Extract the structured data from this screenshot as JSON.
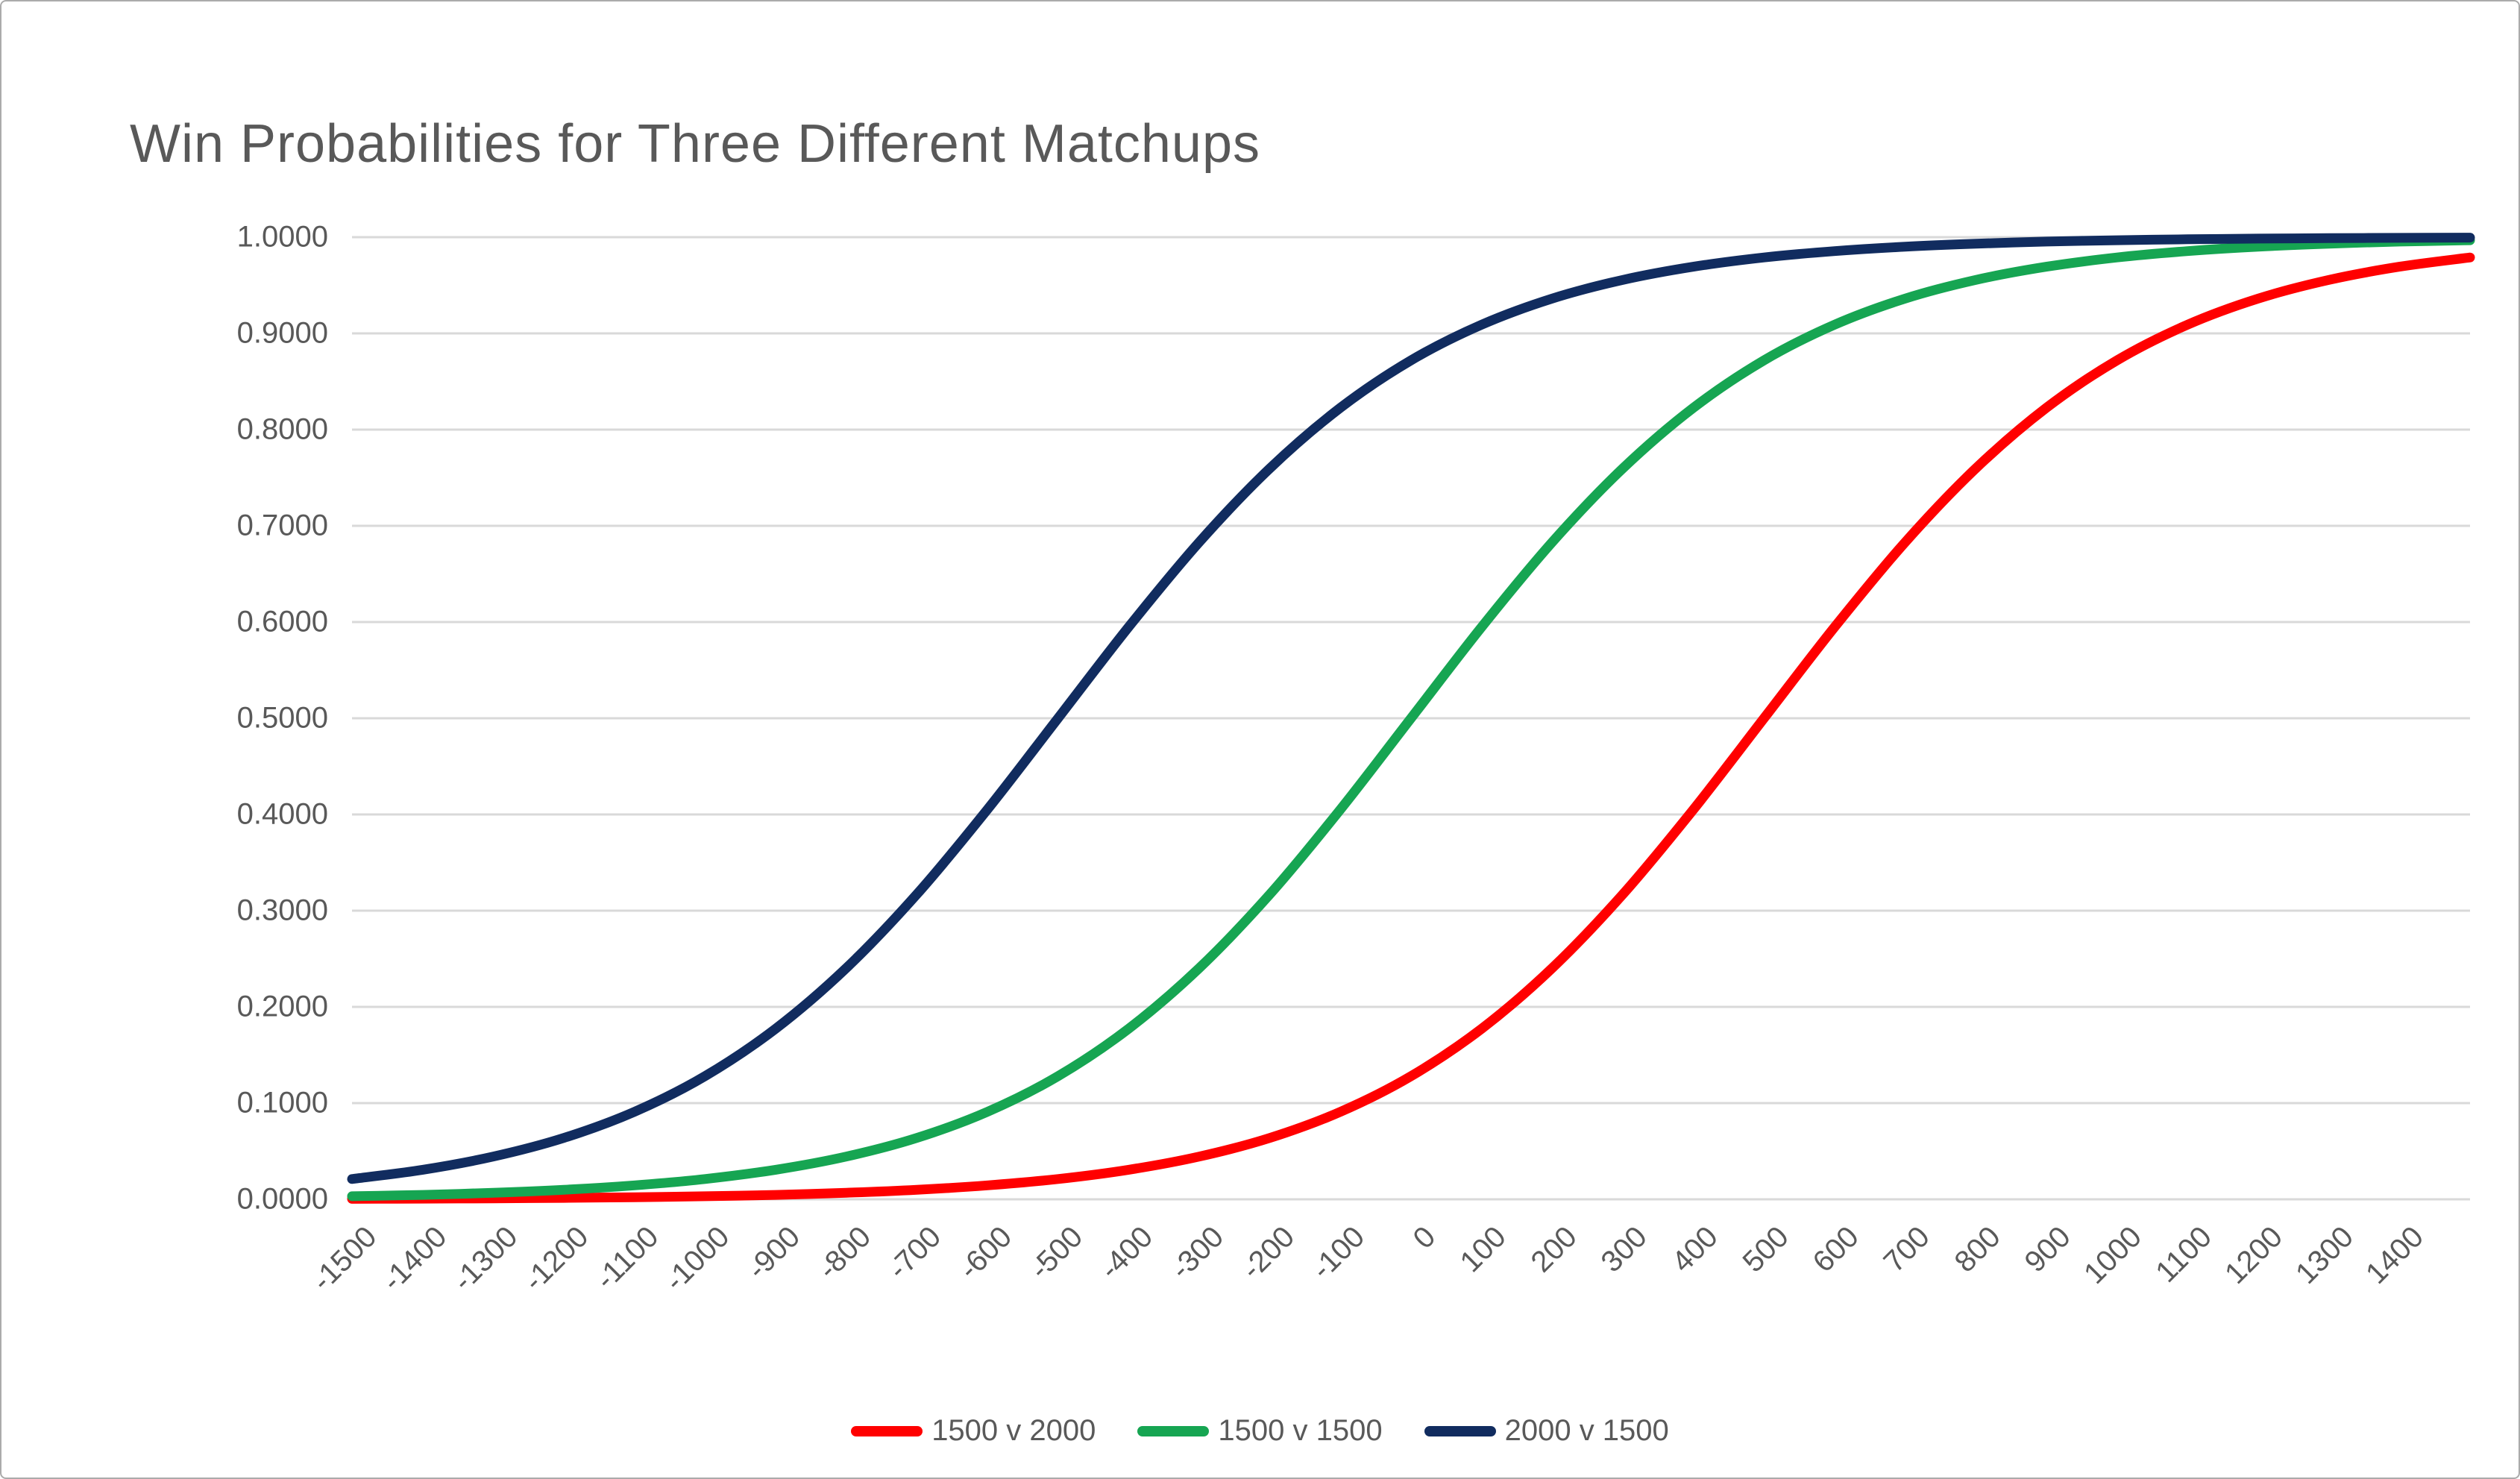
{
  "window": {
    "background_color": "#FFFFFF",
    "border_color": "#ABABAB"
  },
  "title": "Win Probabilities for Three Different Matchups",
  "chart_data": {
    "type": "line",
    "title": "Win Probabilities for Three Different Matchups",
    "xlabel": "",
    "ylabel": "",
    "xlim": [
      -1500,
      1500
    ],
    "ylim": [
      0,
      1
    ],
    "grid": "horizontal",
    "gridline_color": "#D9D9D9",
    "label_color": "#595959",
    "title_color": "#595959",
    "legend_position": "bottom-center",
    "x": [
      -1500,
      -1400,
      -1300,
      -1200,
      -1100,
      -1000,
      -900,
      -800,
      -700,
      -600,
      -500,
      -400,
      -300,
      -200,
      -100,
      0,
      100,
      200,
      300,
      400,
      500,
      600,
      700,
      800,
      900,
      1000,
      1100,
      1200,
      1300,
      1400,
      1500
    ],
    "x_tick_labels": [
      "-1500",
      "-1400",
      "-1300",
      "-1200",
      "-1100",
      "-1000",
      "-900",
      "-800",
      "-700",
      "-600",
      "-500",
      "-400",
      "-300",
      "-200",
      "-100",
      "0",
      "100",
      "200",
      "300",
      "400",
      "500",
      "600",
      "700",
      "800",
      "900",
      "1000",
      "1100",
      "1200",
      "1300",
      "1400"
    ],
    "y_tick_labels": [
      "0.0000",
      "0.1000",
      "0.2000",
      "0.3000",
      "0.4000",
      "0.5000",
      "0.6000",
      "0.7000",
      "0.8000",
      "0.9000",
      "1.0000"
    ],
    "series": [
      {
        "name": "1500 v 2000",
        "color": "#FF0000",
        "values": [
          0.0005,
          0.0007,
          0.001,
          0.0015,
          0.0022,
          0.0032,
          0.0046,
          0.0068,
          0.0099,
          0.0145,
          0.0211,
          0.0307,
          0.0444,
          0.0638,
          0.0909,
          0.128,
          0.1773,
          0.2403,
          0.317,
          0.4052,
          0.5,
          0.5948,
          0.683,
          0.7597,
          0.8227,
          0.872,
          0.9091,
          0.9362,
          0.9556,
          0.9693,
          0.9789
        ]
      },
      {
        "name": "1500 v 1500",
        "color": "#16A552",
        "values": [
          0.0032,
          0.0046,
          0.0068,
          0.0099,
          0.0145,
          0.0211,
          0.0307,
          0.0444,
          0.0638,
          0.0909,
          0.128,
          0.1773,
          0.2403,
          0.317,
          0.4052,
          0.5,
          0.5948,
          0.683,
          0.7597,
          0.8227,
          0.872,
          0.9091,
          0.9362,
          0.9556,
          0.9693,
          0.9789,
          0.9855,
          0.9901,
          0.9932,
          0.9954,
          0.9968
        ]
      },
      {
        "name": "2000 v 1500",
        "color": "#112C5F",
        "values": [
          0.0211,
          0.0307,
          0.0444,
          0.0638,
          0.0909,
          0.128,
          0.1773,
          0.2403,
          0.317,
          0.4052,
          0.5,
          0.5948,
          0.683,
          0.7597,
          0.8227,
          0.872,
          0.9091,
          0.9362,
          0.9556,
          0.9693,
          0.9789,
          0.9855,
          0.9901,
          0.9932,
          0.9954,
          0.9968,
          0.9978,
          0.9985,
          0.999,
          0.9993,
          0.9995
        ]
      }
    ]
  }
}
